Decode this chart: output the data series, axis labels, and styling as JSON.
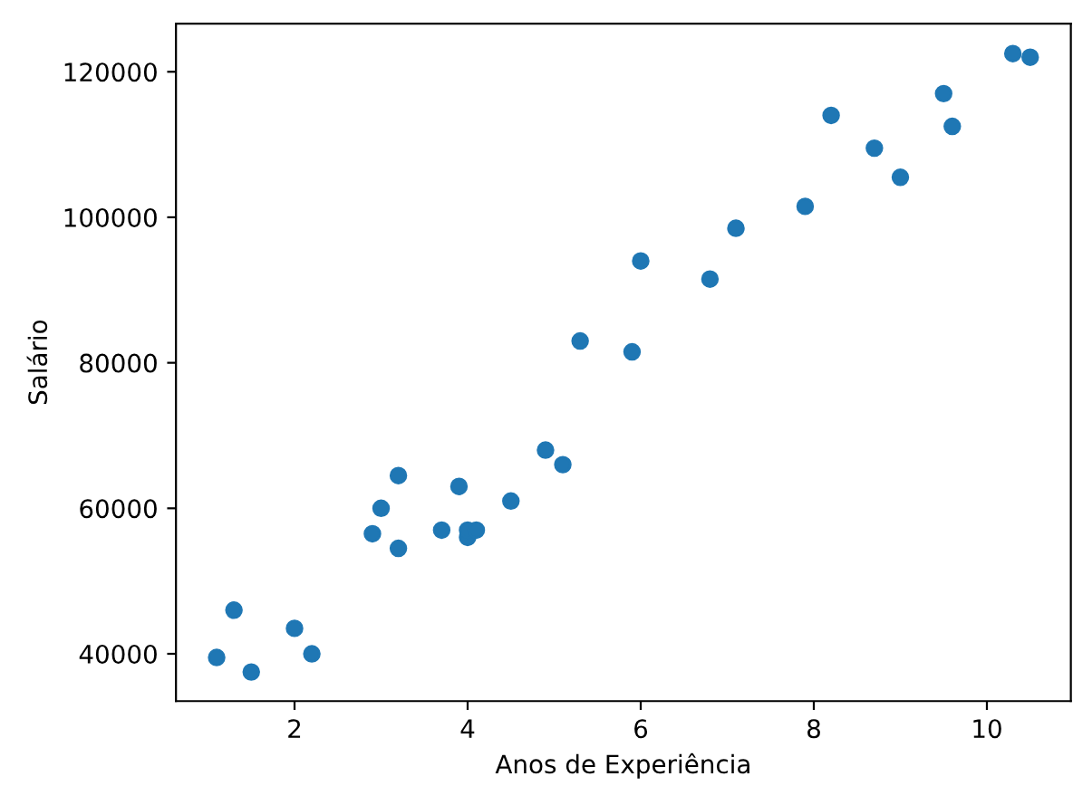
{
  "chart_data": {
    "type": "scatter",
    "xlabel": "Anos de Experiência",
    "ylabel": "Salário",
    "x": [
      1.1,
      1.3,
      1.5,
      2.0,
      2.2,
      2.9,
      3.0,
      3.2,
      3.2,
      3.7,
      3.9,
      4.0,
      4.0,
      4.1,
      4.5,
      4.9,
      5.1,
      5.3,
      5.9,
      6.0,
      6.8,
      7.1,
      7.9,
      8.2,
      8.7,
      9.0,
      9.5,
      9.6,
      10.3,
      10.5
    ],
    "series": [
      {
        "color": "#1f77b4",
        "values": [
          39500,
          46000,
          37500,
          43500,
          40000,
          56500,
          60000,
          54500,
          64500,
          57000,
          63000,
          56000,
          57000,
          57000,
          61000,
          68000,
          66000,
          83000,
          81500,
          94000,
          91500,
          98500,
          101500,
          114000,
          109500,
          105500,
          117000,
          112500,
          122500,
          122000
        ]
      }
    ],
    "xlim": [
      0.63,
      10.97
    ],
    "ylim": [
      33498,
      126624
    ],
    "xticks": [
      2,
      4,
      6,
      8,
      10
    ],
    "yticks": [
      40000,
      60000,
      80000,
      100000,
      120000
    ],
    "marker": "circle",
    "grid": false,
    "legend": false
  }
}
